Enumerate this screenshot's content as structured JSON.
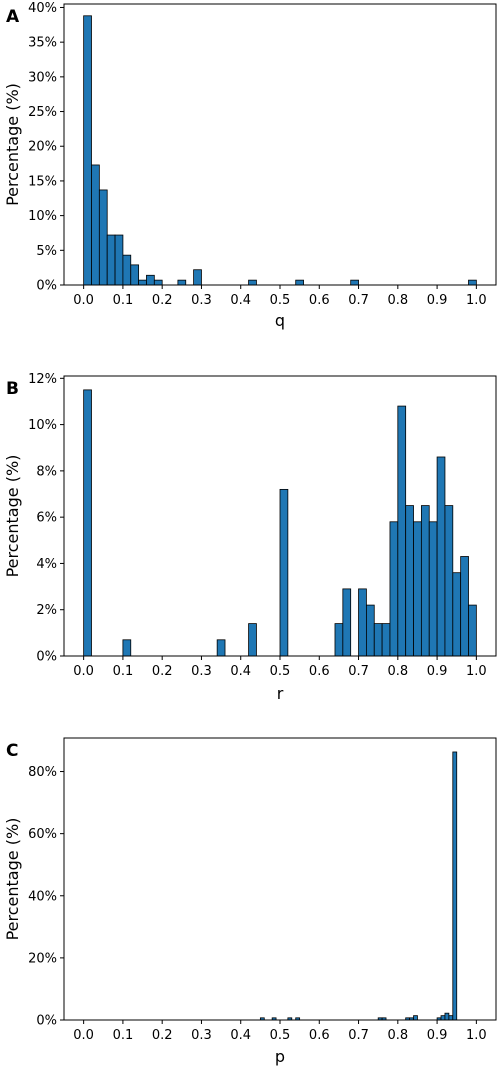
{
  "chart_data": [
    {
      "type": "bar",
      "panel": "A",
      "xlabel": "q",
      "ylabel": "Percentage (%)",
      "xlim": [
        -0.05,
        1.05
      ],
      "ylim": [
        0,
        40.5
      ],
      "bin_width": 0.02,
      "xticks": [
        "0.0",
        "0.1",
        "0.2",
        "0.3",
        "0.4",
        "0.5",
        "0.6",
        "0.7",
        "0.8",
        "0.9",
        "1.0"
      ],
      "xtick_values": [
        0,
        0.1,
        0.2,
        0.3,
        0.4,
        0.5,
        0.6,
        0.7,
        0.8,
        0.9,
        1.0
      ],
      "yticks": [
        "0%",
        "5%",
        "10%",
        "15%",
        "20%",
        "25%",
        "30%",
        "35%",
        "40%"
      ],
      "ytick_values": [
        0,
        5,
        10,
        15,
        20,
        25,
        30,
        35,
        40
      ],
      "bins": [
        {
          "x": 0.0,
          "value": 38.8
        },
        {
          "x": 0.02,
          "value": 17.3
        },
        {
          "x": 0.04,
          "value": 13.7
        },
        {
          "x": 0.06,
          "value": 7.2
        },
        {
          "x": 0.08,
          "value": 7.2
        },
        {
          "x": 0.1,
          "value": 4.3
        },
        {
          "x": 0.12,
          "value": 2.9
        },
        {
          "x": 0.14,
          "value": 0.7
        },
        {
          "x": 0.16,
          "value": 1.4
        },
        {
          "x": 0.18,
          "value": 0.7
        },
        {
          "x": 0.24,
          "value": 0.7
        },
        {
          "x": 0.28,
          "value": 2.2
        },
        {
          "x": 0.42,
          "value": 0.7
        },
        {
          "x": 0.54,
          "value": 0.7
        },
        {
          "x": 0.68,
          "value": 0.7
        },
        {
          "x": 0.98,
          "value": 0.7
        }
      ]
    },
    {
      "type": "bar",
      "panel": "B",
      "xlabel": "r",
      "ylabel": "Percentage (%)",
      "xlim": [
        -0.05,
        1.05
      ],
      "ylim": [
        0,
        12.1
      ],
      "bin_width": 0.02,
      "xticks": [
        "0.0",
        "0.1",
        "0.2",
        "0.3",
        "0.4",
        "0.5",
        "0.6",
        "0.7",
        "0.8",
        "0.9",
        "1.0"
      ],
      "xtick_values": [
        0,
        0.1,
        0.2,
        0.3,
        0.4,
        0.5,
        0.6,
        0.7,
        0.8,
        0.9,
        1.0
      ],
      "yticks": [
        "0%",
        "2%",
        "4%",
        "6%",
        "8%",
        "10%",
        "12%"
      ],
      "ytick_values": [
        0,
        2,
        4,
        6,
        8,
        10,
        12
      ],
      "bins": [
        {
          "x": 0.0,
          "value": 11.5
        },
        {
          "x": 0.1,
          "value": 0.7
        },
        {
          "x": 0.34,
          "value": 0.7
        },
        {
          "x": 0.42,
          "value": 1.4
        },
        {
          "x": 0.5,
          "value": 7.2
        },
        {
          "x": 0.64,
          "value": 1.4
        },
        {
          "x": 0.66,
          "value": 2.9
        },
        {
          "x": 0.7,
          "value": 2.9
        },
        {
          "x": 0.72,
          "value": 2.2
        },
        {
          "x": 0.74,
          "value": 1.4
        },
        {
          "x": 0.76,
          "value": 1.4
        },
        {
          "x": 0.78,
          "value": 5.8
        },
        {
          "x": 0.8,
          "value": 10.8
        },
        {
          "x": 0.82,
          "value": 6.5
        },
        {
          "x": 0.84,
          "value": 5.8
        },
        {
          "x": 0.86,
          "value": 6.5
        },
        {
          "x": 0.88,
          "value": 5.8
        },
        {
          "x": 0.9,
          "value": 8.6
        },
        {
          "x": 0.92,
          "value": 6.5
        },
        {
          "x": 0.94,
          "value": 3.6
        },
        {
          "x": 0.96,
          "value": 4.3
        },
        {
          "x": 0.98,
          "value": 2.2
        }
      ]
    },
    {
      "type": "bar",
      "panel": "C",
      "xlabel": "p",
      "ylabel": "Percentage (%)",
      "xlim": [
        -0.05,
        1.05
      ],
      "ylim": [
        0,
        90.8
      ],
      "bin_width": 0.01,
      "xticks": [
        "0.0",
        "0.1",
        "0.2",
        "0.3",
        "0.4",
        "0.5",
        "0.6",
        "0.7",
        "0.8",
        "0.9",
        "1.0"
      ],
      "xtick_values": [
        0,
        0.1,
        0.2,
        0.3,
        0.4,
        0.5,
        0.6,
        0.7,
        0.8,
        0.9,
        1.0
      ],
      "yticks": [
        "0%",
        "20%",
        "40%",
        "60%",
        "80%"
      ],
      "ytick_values": [
        0,
        20,
        40,
        60,
        80
      ],
      "bins": [
        {
          "x": 0.45,
          "value": 0.7
        },
        {
          "x": 0.48,
          "value": 0.7
        },
        {
          "x": 0.52,
          "value": 0.7
        },
        {
          "x": 0.54,
          "value": 0.7
        },
        {
          "x": 0.75,
          "value": 0.7
        },
        {
          "x": 0.76,
          "value": 0.7
        },
        {
          "x": 0.82,
          "value": 0.7
        },
        {
          "x": 0.83,
          "value": 0.7
        },
        {
          "x": 0.84,
          "value": 1.4
        },
        {
          "x": 0.9,
          "value": 0.7
        },
        {
          "x": 0.91,
          "value": 1.4
        },
        {
          "x": 0.92,
          "value": 2.2
        },
        {
          "x": 0.93,
          "value": 1.4
        },
        {
          "x": 0.94,
          "value": 86.3
        }
      ]
    }
  ]
}
